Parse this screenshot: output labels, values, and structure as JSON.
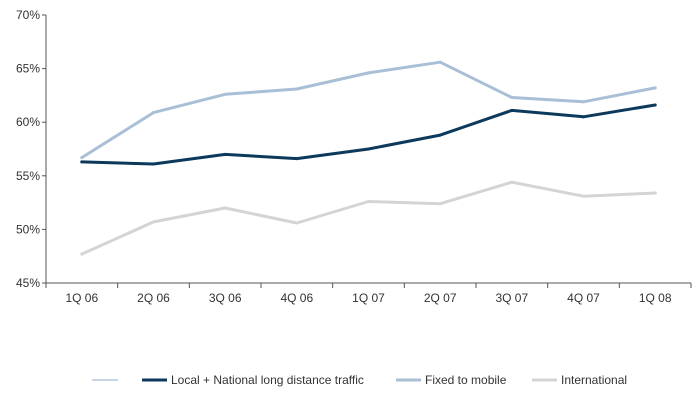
{
  "chart_data": {
    "type": "line",
    "title": "",
    "xlabel": "",
    "ylabel": "",
    "categories": [
      "1Q 06",
      "2Q 06",
      "3Q 06",
      "4Q 06",
      "1Q 07",
      "2Q 07",
      "3Q 07",
      "4Q 07",
      "1Q 08"
    ],
    "y_ticks": [
      "45%",
      "50%",
      "55%",
      "60%",
      "65%",
      "70%"
    ],
    "ylim": [
      45,
      70
    ],
    "grid": false,
    "legend_position": "bottom",
    "series": [
      {
        "name": "Local + National long distance traffic",
        "color": "#0d3a5c",
        "values": [
          56.3,
          56.1,
          57.0,
          56.6,
          57.5,
          58.8,
          61.1,
          60.5,
          61.6
        ]
      },
      {
        "name": "Fixed to mobile",
        "color": "#a8bfd6",
        "values": [
          56.7,
          60.9,
          62.6,
          63.1,
          64.6,
          65.6,
          62.3,
          61.9,
          63.2
        ]
      },
      {
        "name": "International",
        "color": "#d4d4d4",
        "values": [
          47.7,
          50.7,
          52.0,
          50.6,
          52.6,
          52.4,
          54.4,
          53.1,
          53.4
        ]
      }
    ],
    "legend_marker_color": "#8fa9c4"
  }
}
